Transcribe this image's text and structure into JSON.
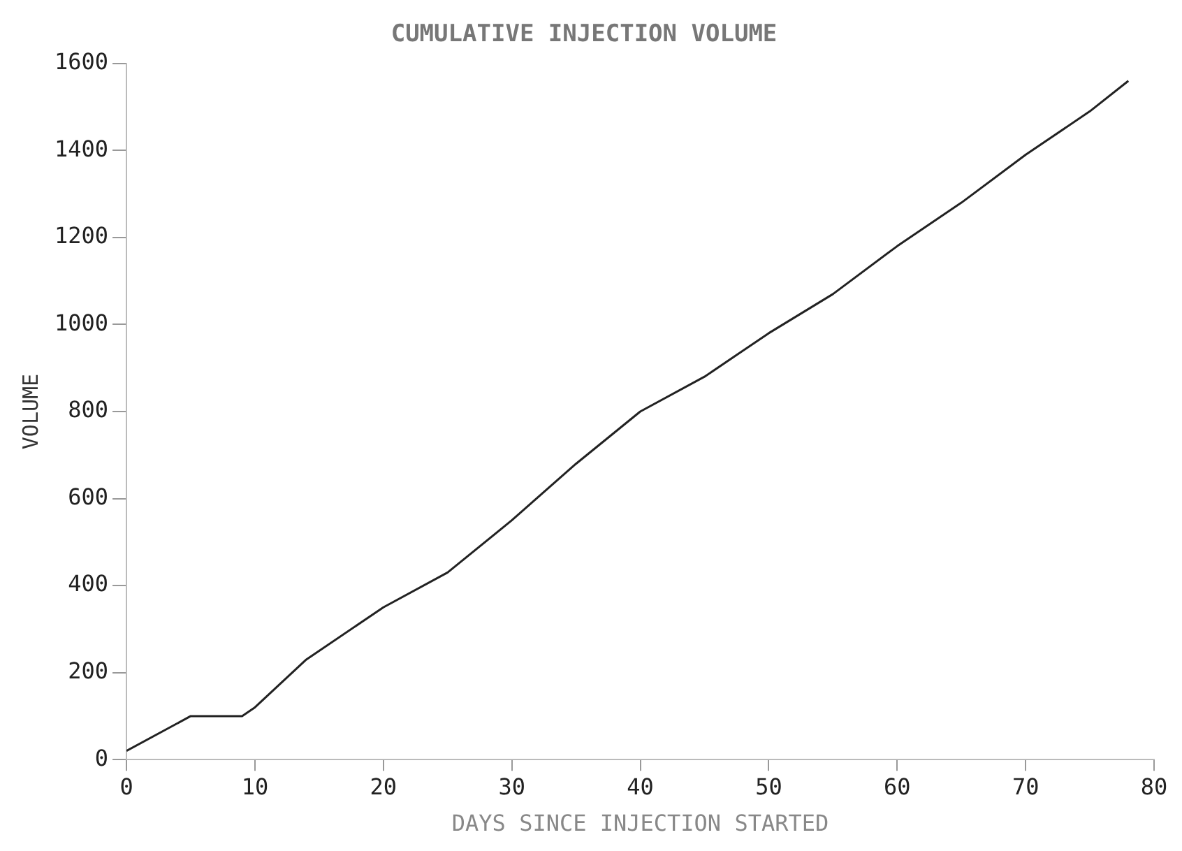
{
  "chart_data": {
    "type": "line",
    "title": "CUMULATIVE INJECTION VOLUME",
    "xlabel": "DAYS SINCE INJECTION STARTED",
    "ylabel": "VOLUME",
    "x": [
      0,
      5,
      9,
      10,
      14,
      20,
      25,
      30,
      35,
      40,
      45,
      50,
      55,
      60,
      65,
      70,
      75,
      78
    ],
    "series": [
      {
        "color": "#222222",
        "values": [
          20,
          100,
          100,
          120,
          230,
          350,
          430,
          550,
          680,
          800,
          880,
          980,
          1070,
          1180,
          1280,
          1390,
          1490,
          1560
        ]
      }
    ],
    "xlim": [
      0,
      80
    ],
    "xticks": [
      0,
      10,
      20,
      30,
      40,
      50,
      60,
      70,
      80
    ],
    "ylim": [
      0,
      1600
    ],
    "yticks": [
      0,
      200,
      400,
      600,
      800,
      1000,
      1200,
      1400,
      1600
    ],
    "grid": false,
    "legend": false,
    "marker": "none",
    "line_style": "solid"
  }
}
